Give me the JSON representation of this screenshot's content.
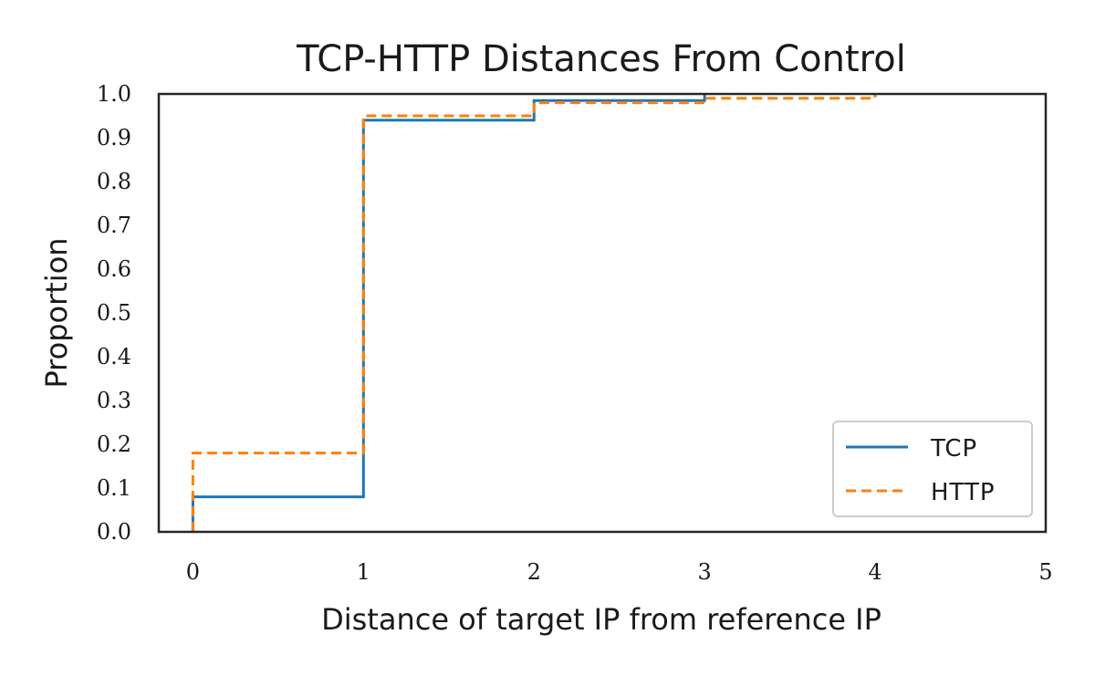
{
  "chart_data": {
    "type": "line",
    "step": "post",
    "title": "TCP-HTTP Distances From Control",
    "xlabel": "Distance of target IP from reference IP",
    "ylabel": "Proportion",
    "xlim": [
      -0.2,
      5
    ],
    "ylim": [
      0,
      1.0
    ],
    "xticks": [
      0,
      1,
      2,
      3,
      4,
      5
    ],
    "xtick_labels": [
      "0",
      "1",
      "2",
      "3",
      "4",
      "5"
    ],
    "yticks": [
      0.0,
      0.1,
      0.2,
      0.3,
      0.4,
      0.5,
      0.6,
      0.7,
      0.8,
      0.9,
      1.0
    ],
    "ytick_labels": [
      "0.0",
      "0.1",
      "0.2",
      "0.3",
      "0.4",
      "0.5",
      "0.6",
      "0.7",
      "0.8",
      "0.9",
      "1.0"
    ],
    "grid": false,
    "legend_position": "bottom-right",
    "series": [
      {
        "name": "TCP",
        "color": "#1f77b4",
        "dash": "solid",
        "x": [
          0,
          1,
          2,
          3
        ],
        "y": [
          0.08,
          0.94,
          0.985,
          1.0
        ]
      },
      {
        "name": "HTTP",
        "color": "#ff7f0e",
        "dash": "dashed",
        "x": [
          0,
          1,
          2,
          3,
          4
        ],
        "y": [
          0.18,
          0.95,
          0.98,
          0.99,
          1.0
        ]
      }
    ]
  }
}
